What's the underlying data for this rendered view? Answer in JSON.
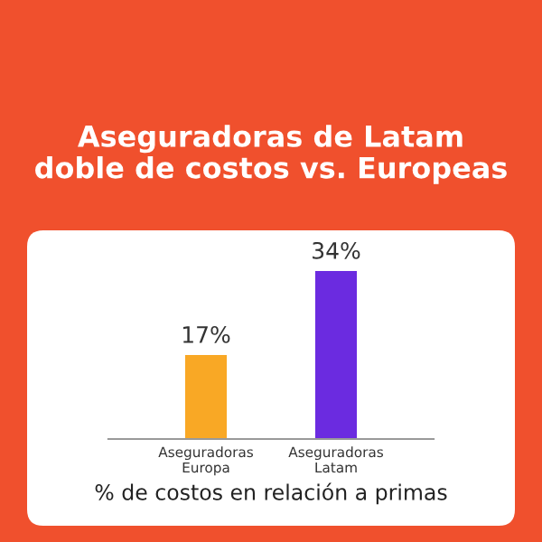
{
  "chart_data": {
    "type": "bar",
    "title": "Aseguradoras de Latam\ndoble de costos vs. Europeas",
    "categories": [
      "Aseguradoras\nEuropa",
      "Aseguradoras\nLatam"
    ],
    "values": [
      17,
      34
    ],
    "colors": [
      "#f9a825",
      "#6b2be0"
    ],
    "value_labels": [
      "17%",
      "34%"
    ],
    "xlabel": "% de costos en relación a primas"
  }
}
